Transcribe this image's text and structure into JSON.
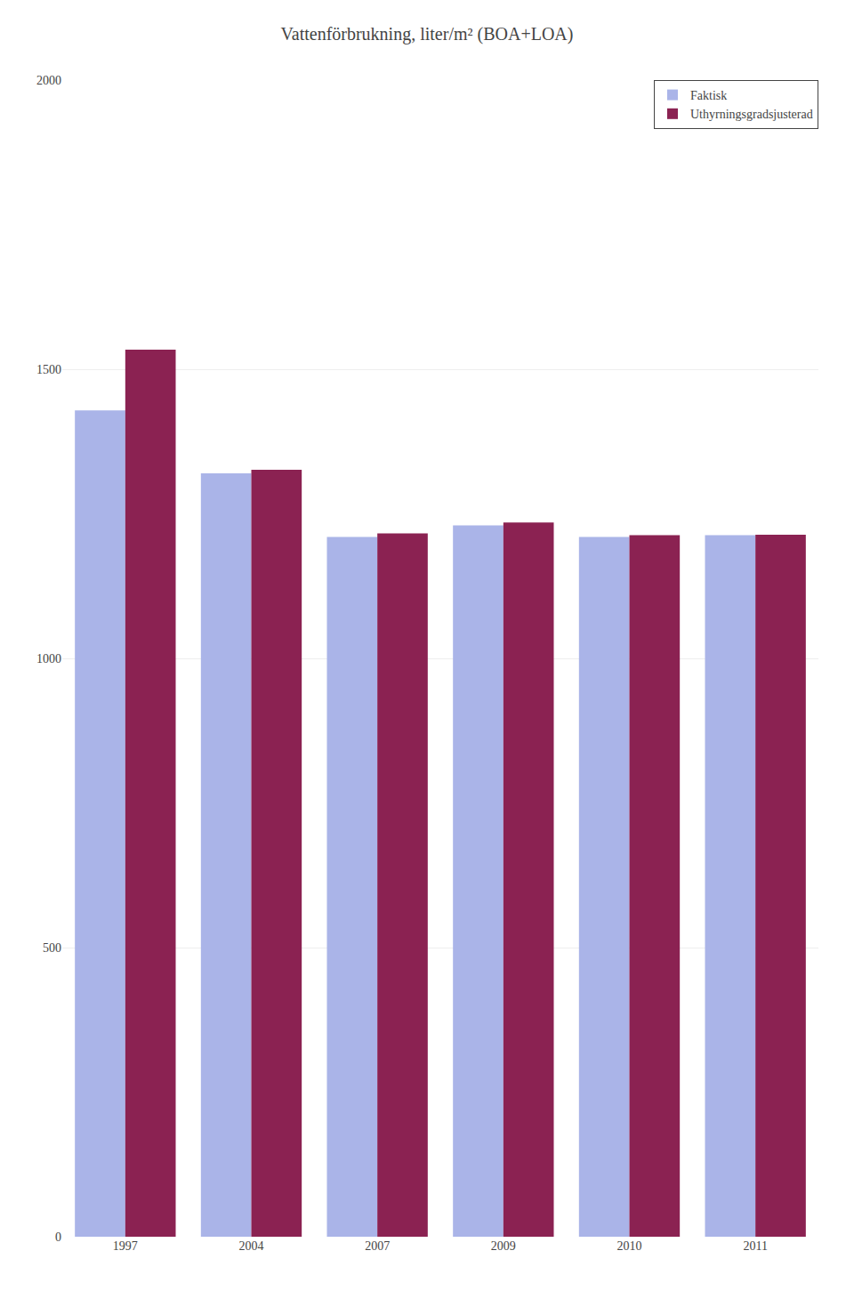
{
  "chart_data": {
    "type": "bar",
    "title": "Vattenförbrukning, liter/m² (BOA+LOA)",
    "categories": [
      "1997",
      "2004",
      "2007",
      "2009",
      "2010",
      "2011"
    ],
    "series": [
      {
        "name": "Faktisk",
        "color": "#aab4e8",
        "values": [
          1429,
          1320,
          1210,
          1230,
          1210,
          1213
        ]
      },
      {
        "name": "Uthyrningsgradsjusterad",
        "color": "#8b2252",
        "values": [
          1534,
          1326,
          1216,
          1235,
          1213,
          1214
        ]
      }
    ],
    "ylim": [
      0,
      2000
    ],
    "yticks": [
      0,
      500,
      1000,
      1500,
      2000
    ],
    "grid": true,
    "legend": "upper right"
  }
}
